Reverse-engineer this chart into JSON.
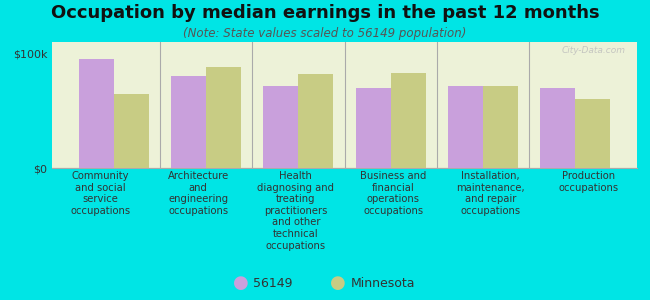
{
  "title": "Occupation by median earnings in the past 12 months",
  "subtitle": "(Note: State values scaled to 56149 population)",
  "categories": [
    "Community\nand social\nservice\noccupations",
    "Architecture\nand\nengineering\noccupations",
    "Health\ndiagnosing and\ntreating\npractitioners\nand other\ntechnical\noccupations",
    "Business and\nfinancial\noperations\noccupations",
    "Installation,\nmaintenance,\nand repair\noccupations",
    "Production\noccupations"
  ],
  "values_56149": [
    95000,
    80000,
    72000,
    70000,
    72000,
    70000
  ],
  "values_minnesota": [
    65000,
    88000,
    82000,
    83000,
    72000,
    60000
  ],
  "color_56149": "#c9a0dc",
  "color_minnesota": "#c8cc84",
  "background_color": "#00e5e5",
  "plot_bg_color": "#edf2d8",
  "ylim": [
    0,
    110000
  ],
  "yticks": [
    0,
    100000
  ],
  "ytick_labels": [
    "$0",
    "$100k"
  ],
  "legend_label_56149": "56149",
  "legend_label_minnesota": "Minnesota",
  "watermark": "City-Data.com",
  "bar_width": 0.38,
  "title_fontsize": 13,
  "subtitle_fontsize": 8.5,
  "tick_fontsize": 8,
  "xlabel_fontsize": 7.2,
  "legend_fontsize": 9
}
